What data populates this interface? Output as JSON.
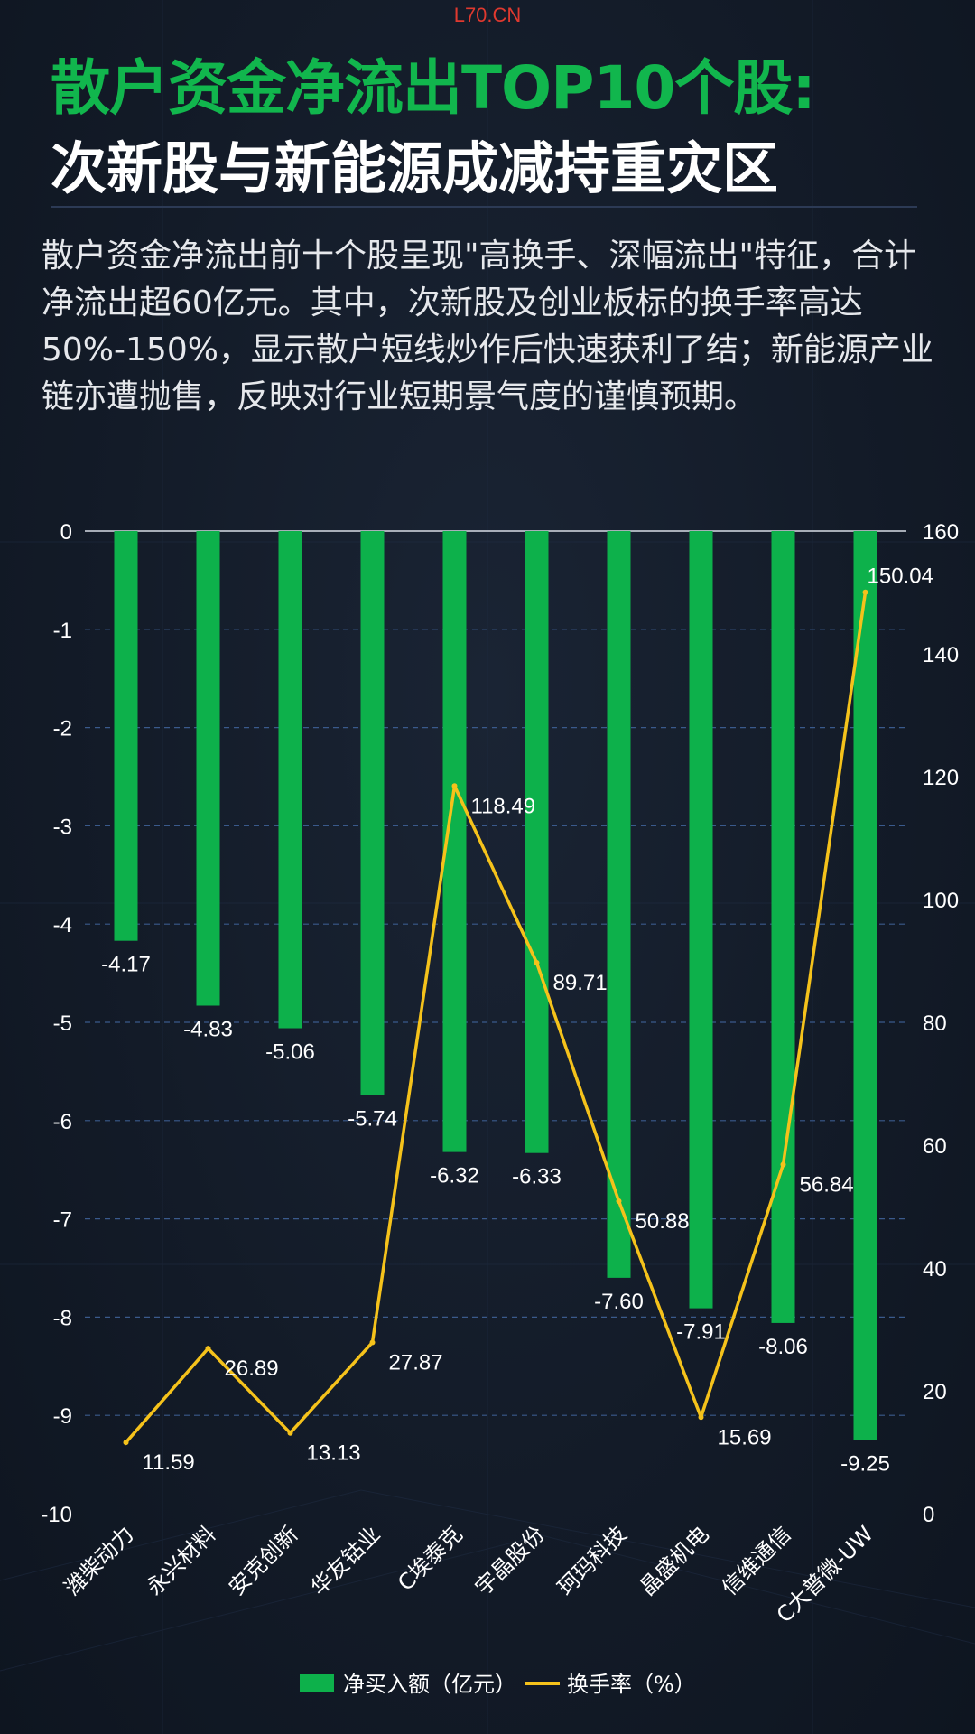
{
  "watermark": "L70.CN",
  "header": {
    "title": "散户资金净流出TOP10个股:",
    "subtitle": "次新股与新能源成减持重灾区"
  },
  "summary": "散户资金净流出前十个股呈现\"高换手、深幅流出\"特征，合计净流出超60亿元。其中，次新股及创业板标的换手率高达50%-150%，显示散户短线炒作后快速获利了结；新能源产业链亦遭抛售，反映对行业短期景气度的谨慎预期。",
  "colors": {
    "bar": "#0db14b",
    "line": "#f5c21b",
    "title_green": "#11b64d",
    "grid": "#3a5a8c"
  },
  "chart_data": {
    "type": "bar+line",
    "categories": [
      "潍柴动力",
      "永兴材料",
      "安克创新",
      "华友钴业",
      "C埃泰克",
      "宇晶股份",
      "珂玛科技",
      "晶盛机电",
      "信维通信",
      "C大普微-UW"
    ],
    "series": [
      {
        "name": "净买入额（亿元）",
        "type": "bar",
        "axis": "left",
        "values": [
          -4.17,
          -4.83,
          -5.06,
          -5.74,
          -6.32,
          -6.33,
          -7.6,
          -7.91,
          -8.06,
          -9.25
        ],
        "labels": [
          "-4.17",
          "-4.83",
          "-5.06",
          "-5.74",
          "-6.32",
          "-6.33",
          "-7.60",
          "-7.91",
          "-8.06",
          "-9.25"
        ]
      },
      {
        "name": "换手率（%）",
        "type": "line",
        "axis": "right",
        "values": [
          11.59,
          26.89,
          13.13,
          27.87,
          118.49,
          89.71,
          50.88,
          15.69,
          56.84,
          150.04
        ],
        "labels": [
          "11.59",
          "26.89",
          "13.13",
          "27.87",
          "118.49",
          "89.71",
          "50.88",
          "15.69",
          "56.84",
          "150.04"
        ]
      }
    ],
    "y_left": {
      "min": -10,
      "max": 0,
      "ticks": [
        "0",
        "-1",
        "-2",
        "-3",
        "-4",
        "-5",
        "-6",
        "-7",
        "-8",
        "-9",
        "-10"
      ]
    },
    "y_right": {
      "min": 0,
      "max": 160,
      "ticks": [
        "160",
        "140",
        "120",
        "100",
        "80",
        "60",
        "40",
        "20",
        "0"
      ]
    },
    "grid": "dashed horizontal",
    "legend": "bottom-center"
  }
}
